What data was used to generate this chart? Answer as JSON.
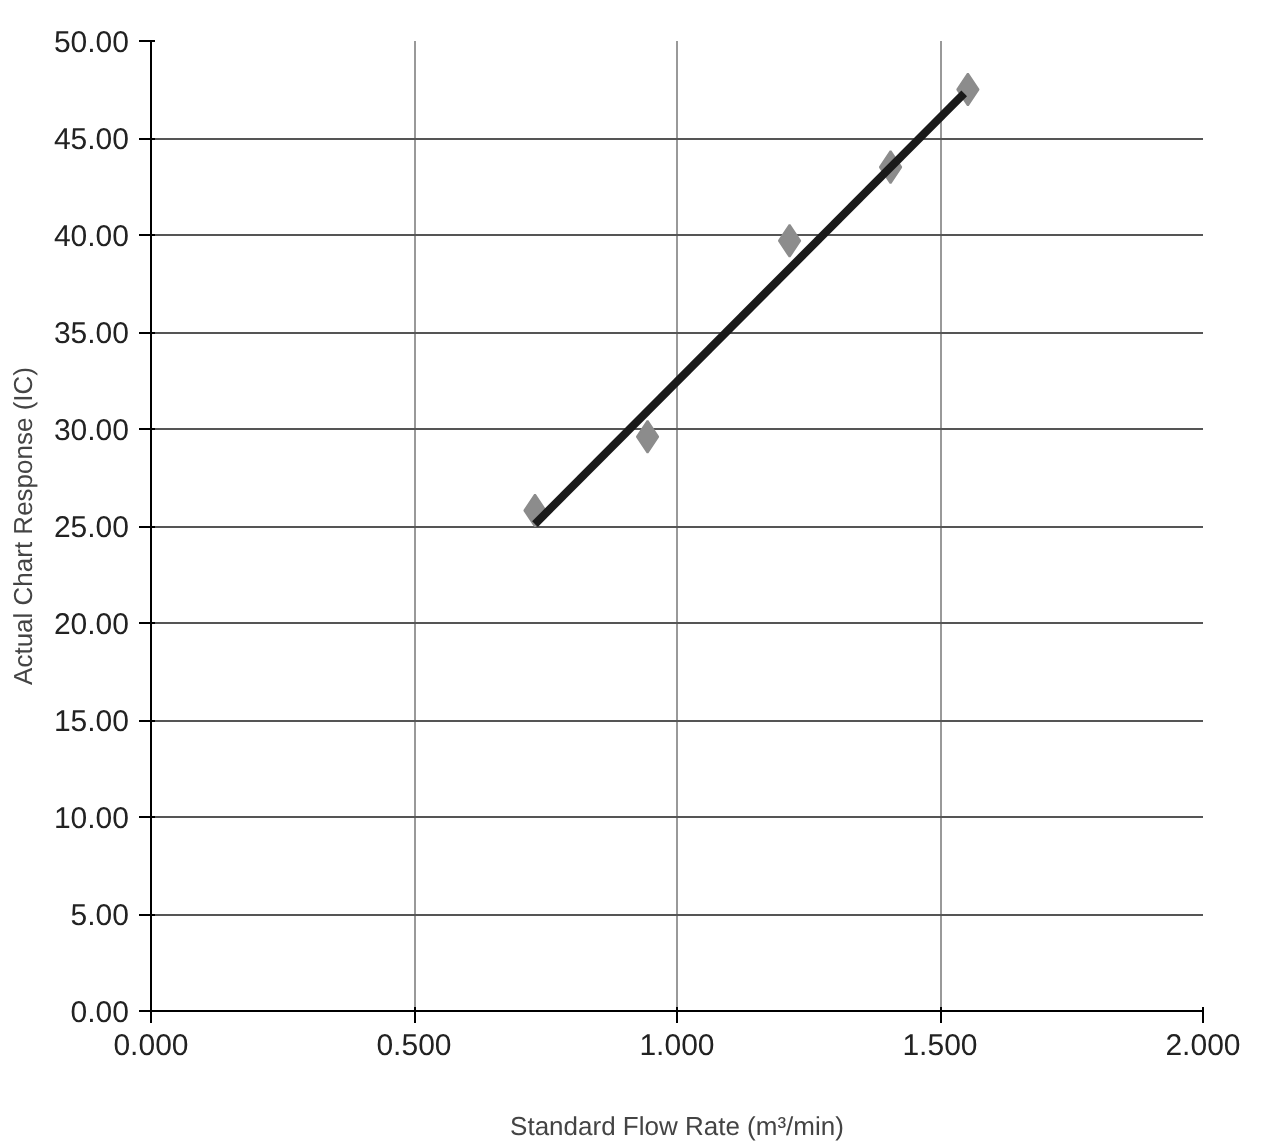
{
  "chart_data": {
    "type": "scatter",
    "xlabel": "Standard Flow Rate (m³/min)",
    "ylabel": "Actual Chart Response (IC)",
    "xlim": [
      0,
      2
    ],
    "ylim": [
      0,
      50
    ],
    "xticks": [
      {
        "value": 0,
        "label": "0.000"
      },
      {
        "value": 0.5,
        "label": "0.500"
      },
      {
        "value": 1,
        "label": "1.000"
      },
      {
        "value": 1.5,
        "label": "1.500"
      },
      {
        "value": 2,
        "label": "2.000"
      }
    ],
    "yticks": [
      {
        "value": 0,
        "label": "0.00"
      },
      {
        "value": 5,
        "label": "5.00"
      },
      {
        "value": 10,
        "label": "10.00"
      },
      {
        "value": 15,
        "label": "15.00"
      },
      {
        "value": 20,
        "label": "20.00"
      },
      {
        "value": 25,
        "label": "25.00"
      },
      {
        "value": 30,
        "label": "30.00"
      },
      {
        "value": 35,
        "label": "35.00"
      },
      {
        "value": 40,
        "label": "40.00"
      },
      {
        "value": 45,
        "label": "45.00"
      },
      {
        "value": 50,
        "label": "50.00"
      }
    ],
    "grid": true,
    "series": [
      {
        "marker": "diamond",
        "color": "#8c8c8c",
        "x": [
          0.73,
          0.944,
          1.214,
          1.406,
          1.553
        ],
        "values": [
          25.8,
          29.6,
          39.7,
          43.5,
          47.5
        ]
      },
      {
        "type": "line",
        "color": "#1a1a1a",
        "x": [
          0.73,
          1.546
        ],
        "values": [
          25.1,
          47.3
        ]
      }
    ]
  }
}
